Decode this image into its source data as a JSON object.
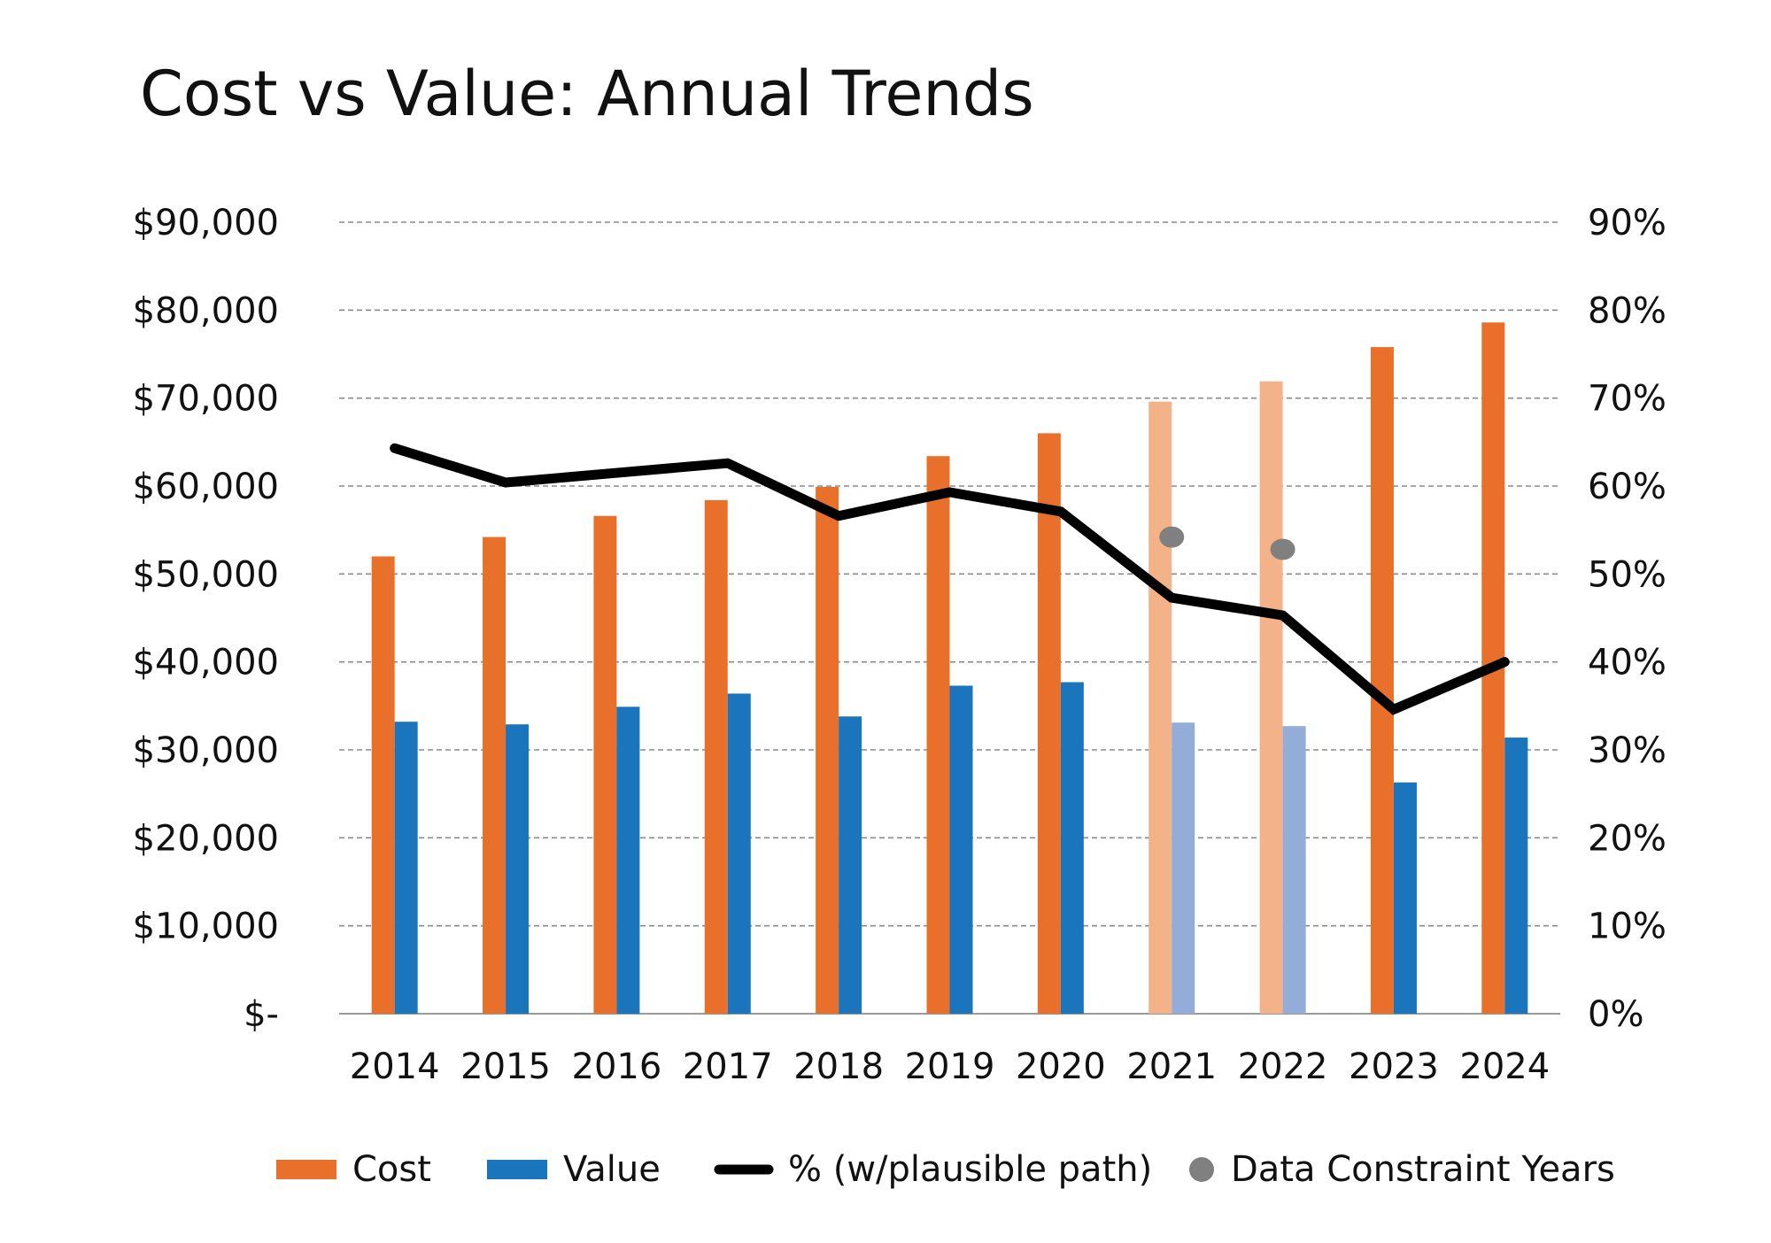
{
  "chart_data": {
    "type": "bar",
    "title": "Cost vs Value: Annual Trends",
    "categories": [
      "2014",
      "2015",
      "2016",
      "2017",
      "2018",
      "2019",
      "2020",
      "2021",
      "2022",
      "2023",
      "2024"
    ],
    "left_axis": {
      "range": [
        0,
        90000
      ],
      "tick_labels": [
        "$-",
        "$10,000",
        "$20,000",
        "$30,000",
        "$40,000",
        "$50,000",
        "$60,000",
        "$70,000",
        "$80,000",
        "$90,000"
      ]
    },
    "right_axis": {
      "range": [
        0,
        90
      ],
      "tick_labels": [
        "0%",
        "10%",
        "20%",
        "30%",
        "40%",
        "50%",
        "60%",
        "70%",
        "80%",
        "90%"
      ]
    },
    "grid": true,
    "legend_position": "bottom",
    "highlighted_categories": [
      "2021",
      "2022"
    ],
    "series": [
      {
        "name": "Cost",
        "type": "bar",
        "axis": "left",
        "color": "#E8702A",
        "faded_color": "#F3B287",
        "values": [
          52000,
          54200,
          56600,
          58400,
          59900,
          63400,
          66000,
          69600,
          71900,
          75800,
          78600
        ]
      },
      {
        "name": "Value",
        "type": "bar",
        "axis": "left",
        "color": "#1B75BC",
        "faded_color": "#93ACD8",
        "values": [
          33200,
          32900,
          34900,
          36400,
          33800,
          37300,
          37700,
          33100,
          32700,
          26300,
          31400
        ]
      },
      {
        "name": "% (w/plausible path)",
        "type": "line",
        "axis": "right",
        "color": "#000000",
        "values": [
          64.3,
          60.4,
          61.5,
          62.6,
          56.6,
          59.3,
          57.1,
          47.3,
          45.3,
          34.6,
          40.0
        ]
      },
      {
        "name": "Data Constraint Years",
        "type": "scatter",
        "axis": "right",
        "color": "#808080",
        "points": [
          {
            "x": "2021",
            "y": 54.2
          },
          {
            "x": "2022",
            "y": 52.8
          }
        ]
      }
    ]
  }
}
